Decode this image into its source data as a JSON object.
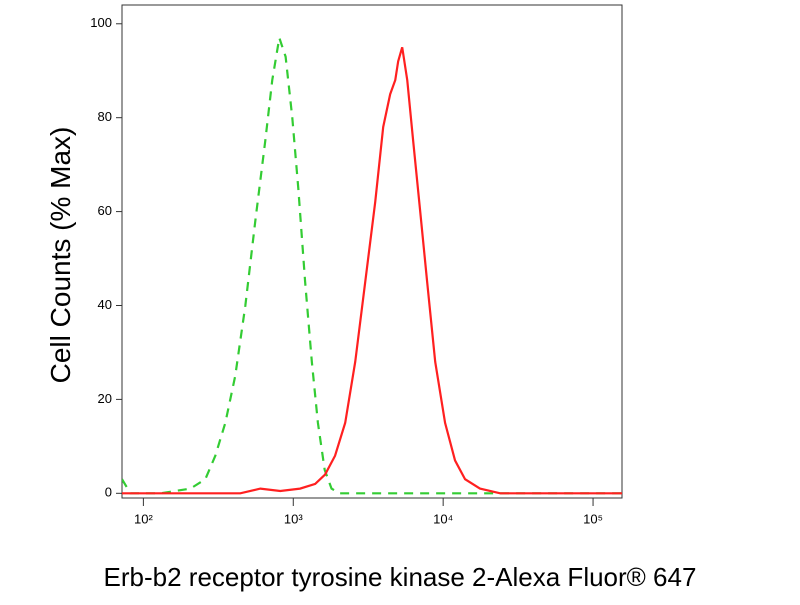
{
  "chart_data": {
    "type": "line",
    "xlabel": "Erb-b2 receptor tyrosine kinase 2-Alexa Fluor® 647",
    "ylabel": "Cell Counts (% Max)",
    "xscale": "log",
    "xlim": [
      72,
      156000
    ],
    "ylim": [
      -1,
      104
    ],
    "xticks": [
      {
        "value": 100,
        "label": "10²"
      },
      {
        "value": 1000,
        "label": "10³"
      },
      {
        "value": 10000,
        "label": "10⁴"
      },
      {
        "value": 100000,
        "label": "10⁵"
      }
    ],
    "yticks": [
      0,
      20,
      40,
      60,
      80,
      100
    ],
    "series": [
      {
        "color": "#33cc33",
        "dash": true,
        "x": [
          72,
          82,
          130,
          206,
          259,
          302,
          352,
          410,
          479,
          558,
          650,
          724,
          807,
          889,
          985,
          1080,
          1200,
          1330,
          1460,
          1620,
          1800,
          2030,
          5130,
          156000
        ],
        "values": [
          3,
          0,
          0,
          1,
          3,
          8,
          15,
          25,
          40,
          58,
          75,
          88,
          97,
          93,
          80,
          65,
          45,
          28,
          15,
          5,
          1,
          0,
          0,
          0
        ]
      },
      {
        "color": "#ff2020",
        "dash": false,
        "x": [
          72,
          443,
          603,
          819,
          1110,
          1400,
          1630,
          1900,
          2220,
          2590,
          3020,
          3520,
          3980,
          4430,
          4790,
          5010,
          5330,
          5760,
          6310,
          7030,
          7820,
          8850,
          10300,
          12000,
          14000,
          17600,
          24000,
          156000
        ],
        "values": [
          0,
          0,
          1,
          0.5,
          1,
          2,
          4,
          8,
          15,
          28,
          45,
          62,
          78,
          85,
          88,
          92,
          95,
          88,
          75,
          60,
          45,
          28,
          15,
          7,
          3,
          1,
          0,
          0
        ]
      }
    ]
  }
}
